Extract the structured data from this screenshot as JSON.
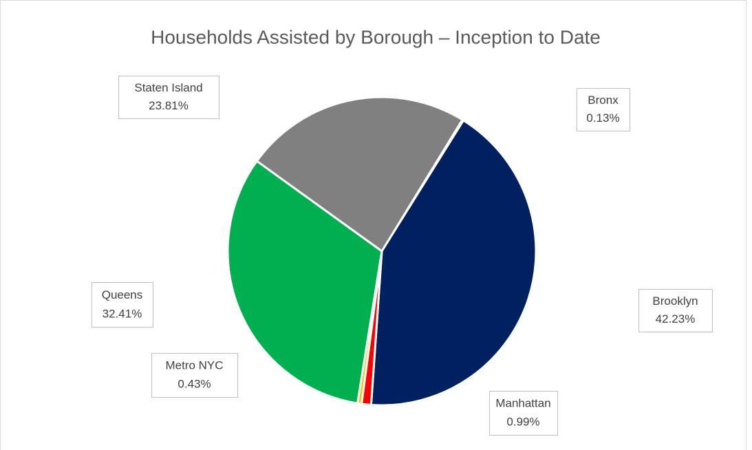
{
  "chart_data": {
    "type": "pie",
    "title": "Households Assisted by Borough – Inception to Date",
    "categories": [
      "Bronx",
      "Brooklyn",
      "Manhattan",
      "Metro NYC",
      "Queens",
      "Staten Island"
    ],
    "values": [
      0.13,
      42.23,
      0.99,
      0.43,
      32.41,
      23.81
    ],
    "value_labels": [
      "0.13%",
      "42.23%",
      "0.99%",
      "0.43%",
      "32.41%",
      "23.81%"
    ],
    "colors": [
      "#4472c4",
      "#002060",
      "#ff0000",
      "#ffc000",
      "#00b050",
      "#808080"
    ]
  }
}
